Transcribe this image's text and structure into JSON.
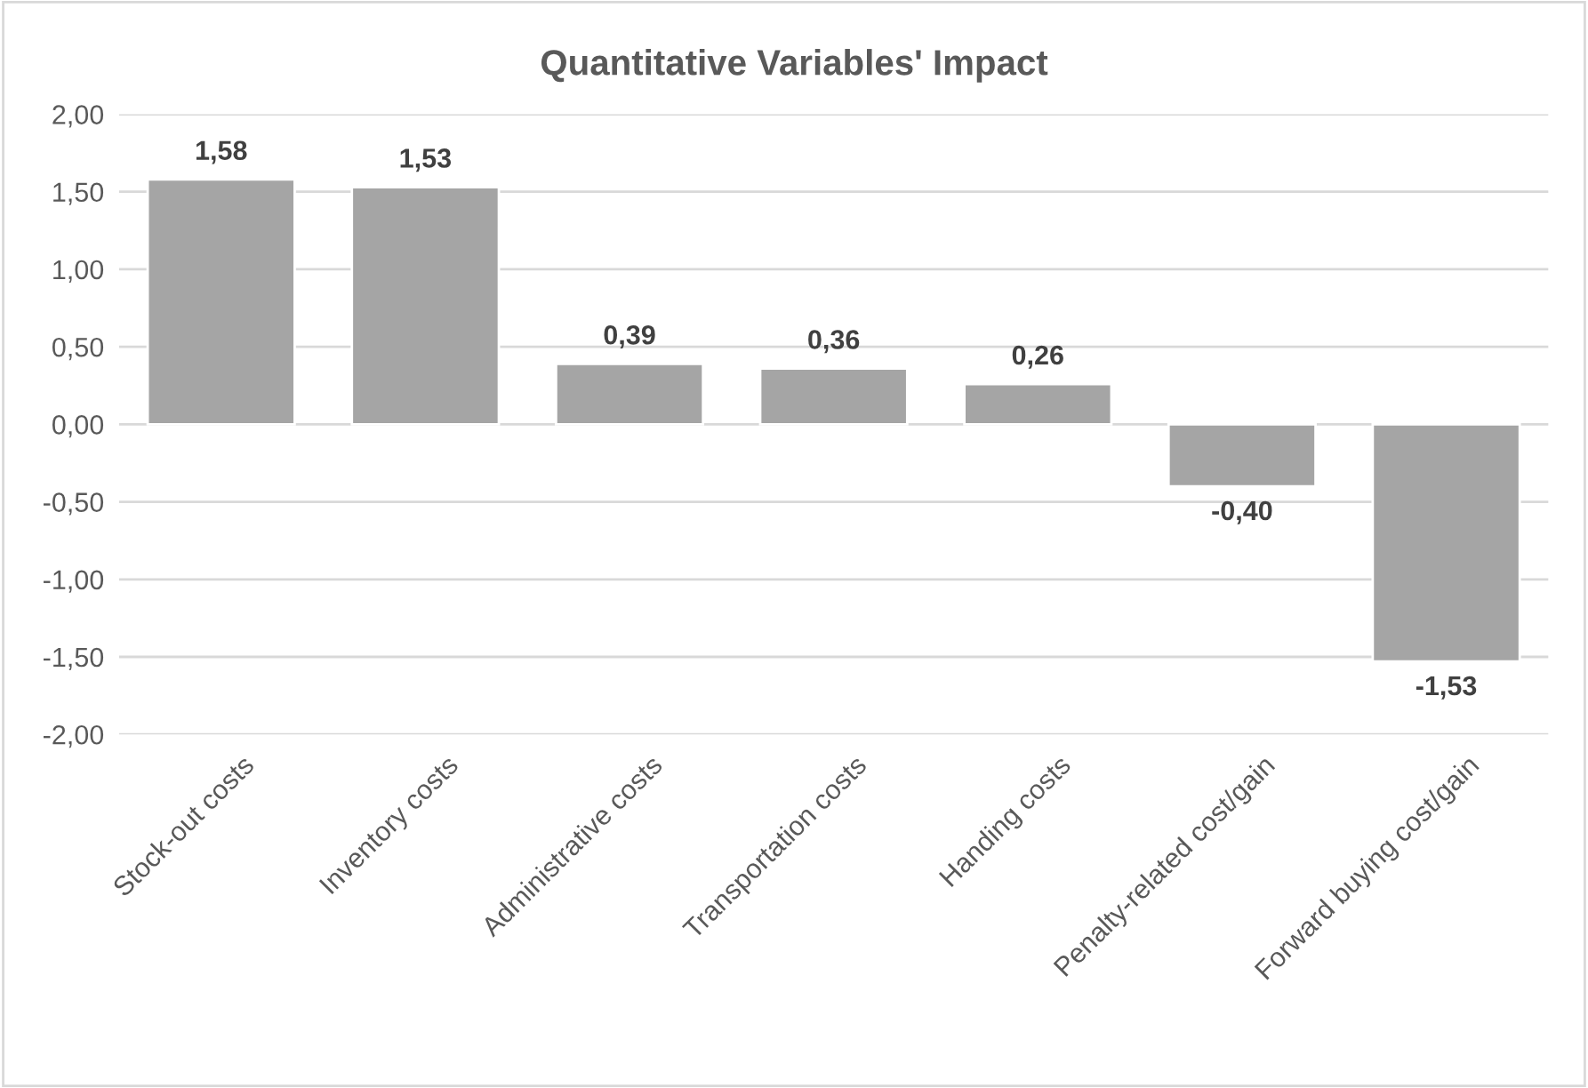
{
  "chart_data": {
    "type": "bar",
    "title": "Quantitative Variables' Impact",
    "categories": [
      "Stock-out costs",
      "Inventory costs",
      "Administrative costs",
      "Transportation costs",
      "Handing costs",
      "Penalty-related cost/gain",
      "Forward buying cost/gain"
    ],
    "values": [
      1.58,
      1.53,
      0.39,
      0.36,
      0.26,
      -0.4,
      -1.53
    ],
    "value_labels": [
      "1,58",
      "1,53",
      "0,39",
      "0,36",
      "0,26",
      "-0,40",
      "-1,53"
    ],
    "color": "#a5a5a5",
    "ylim": [
      -2,
      2
    ],
    "yticks": [
      {
        "value": -2,
        "label": "-2,00"
      },
      {
        "value": -1.5,
        "label": "-1,50"
      },
      {
        "value": -1,
        "label": "-1,00"
      },
      {
        "value": -0.5,
        "label": "-0,50"
      },
      {
        "value": 0,
        "label": "0,00"
      },
      {
        "value": 0.5,
        "label": "0,50"
      },
      {
        "value": 1,
        "label": "1,00"
      },
      {
        "value": 1.5,
        "label": "1,50"
      },
      {
        "value": 2,
        "label": "2,00"
      }
    ],
    "grid": "y"
  }
}
